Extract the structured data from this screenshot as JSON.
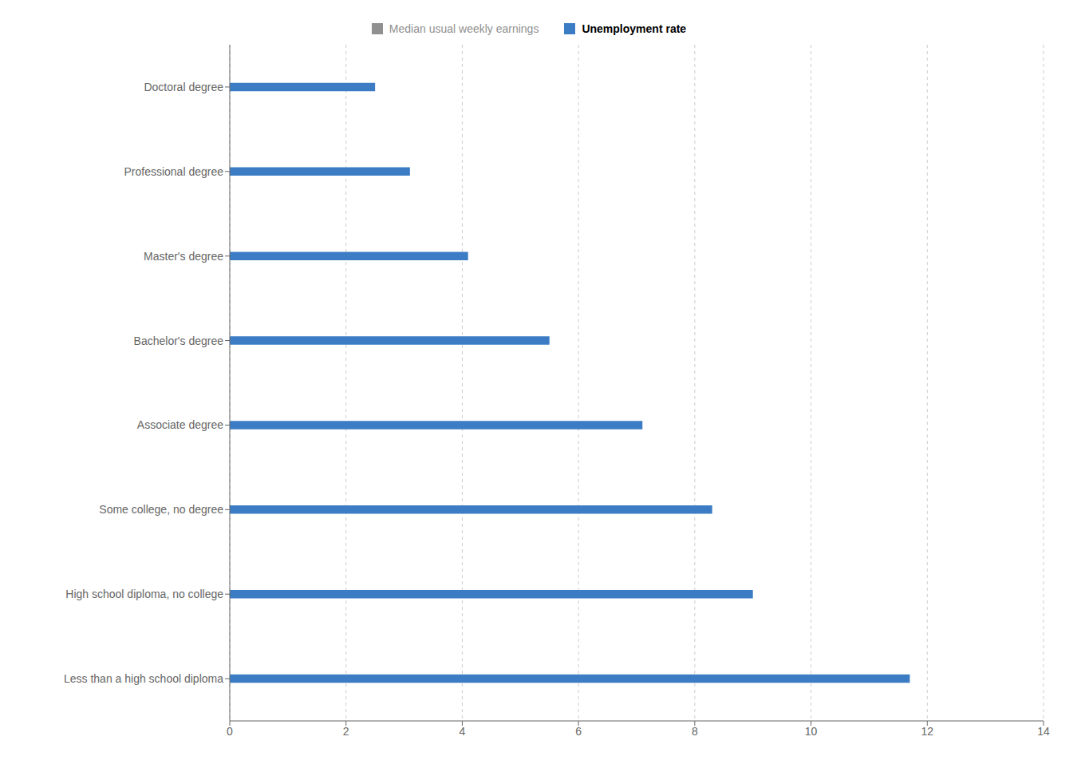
{
  "chart_data": {
    "type": "bar",
    "orientation": "horizontal",
    "categories": [
      "Less than a high school diploma",
      "High school diploma, no college",
      "Some college, no degree",
      "Associate degree",
      "Bachelor's degree",
      "Master's degree",
      "Professional degree",
      "Doctoral degree"
    ],
    "series": [
      {
        "name": "Median usual weekly earnings",
        "color": "#909090",
        "values": [
          null,
          null,
          null,
          null,
          null,
          null,
          null,
          null
        ]
      },
      {
        "name": "Unemployment rate",
        "color": "#3B7CC4",
        "values": [
          11.7,
          9.0,
          8.3,
          7.1,
          5.5,
          4.1,
          3.1,
          2.5
        ]
      }
    ],
    "xlim": [
      0,
      14
    ],
    "xticks": [
      0,
      2,
      4,
      6,
      8,
      10,
      12,
      14
    ],
    "grid": true,
    "legend": "top"
  }
}
